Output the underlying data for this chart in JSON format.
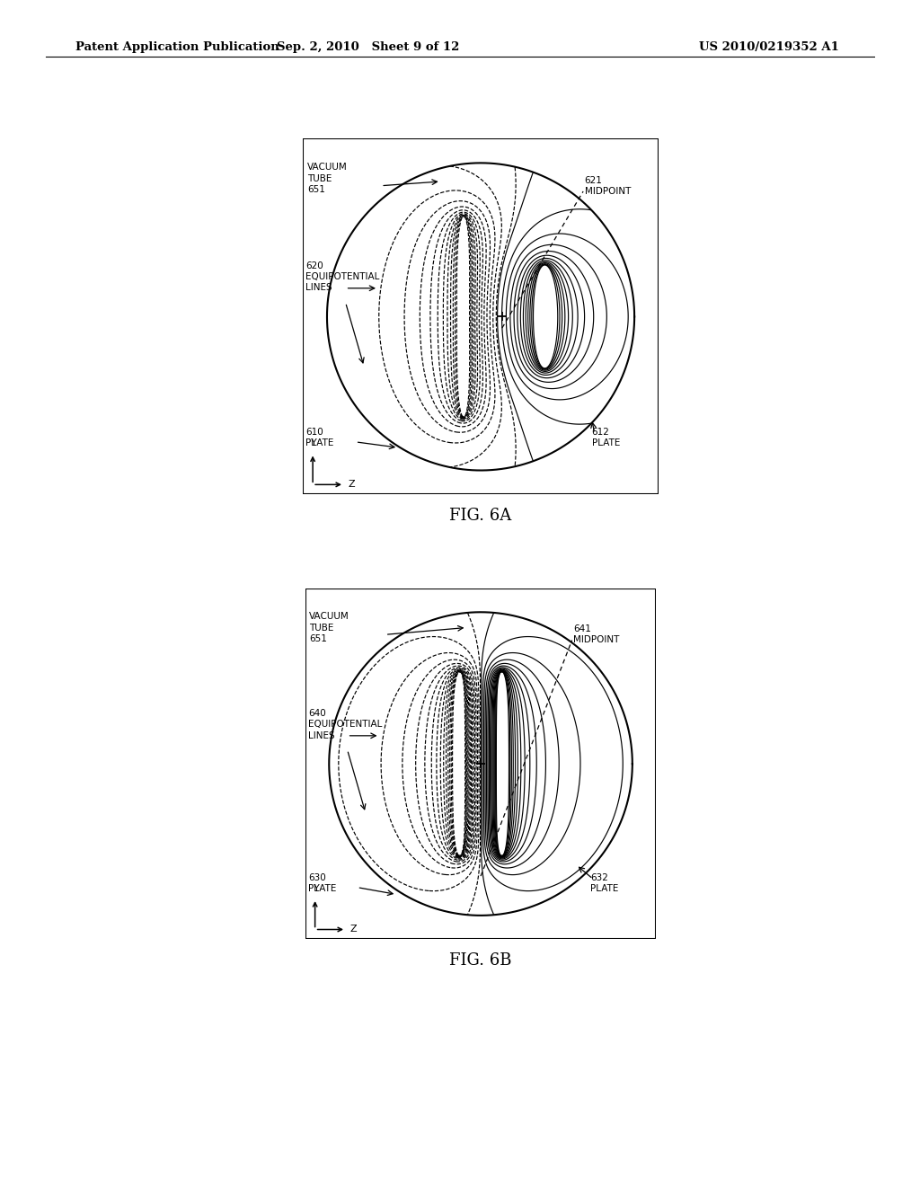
{
  "header_left": "Patent Application Publication",
  "header_mid": "Sep. 2, 2010   Sheet 9 of 12",
  "header_right": "US 2010/0219352 A1",
  "fig_a_label": "FIG. 6A",
  "fig_b_label": "FIG. 6B",
  "background_color": "#ffffff",
  "fig6a": {
    "vacuum_tube_label": "VACUUM\nTUBE\n651",
    "equip_label": "620\nEQUIPOTENTIAL\nLINES",
    "plate_left_label": "610\nPLATE",
    "plate_right_label": "612\nPLATE",
    "midpoint_label": "621\nMIDPOINT"
  },
  "fig6b": {
    "vacuum_tube_label": "VACUUM\nTUBE\n651",
    "equip_label": "640\nEQUIPOTENTIAL\nLINES",
    "plate_left_label": "630\nPLATE",
    "plate_right_label": "632\nPLATE",
    "midpoint_label": "641\nMIDPOINT"
  }
}
